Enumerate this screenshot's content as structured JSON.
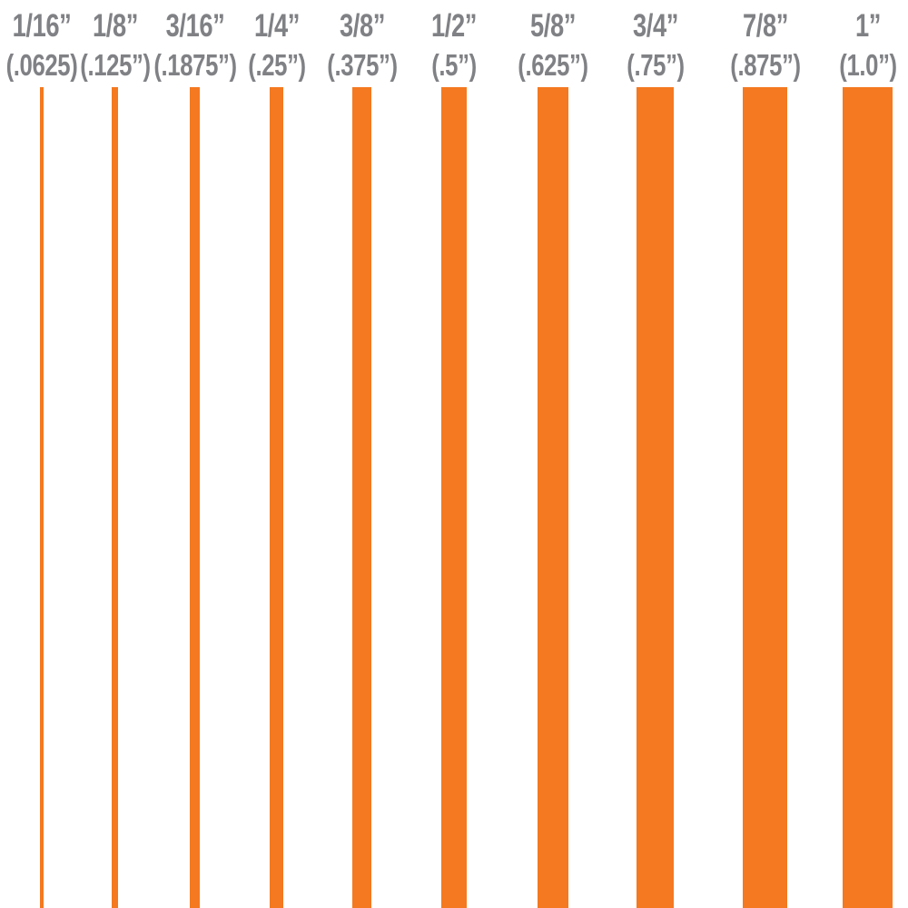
{
  "bar_color": "#F47920",
  "label_color": "#808185",
  "widths": [
    {
      "fraction": "1/16”",
      "decimal": "(.0625)",
      "inches": 0.0625
    },
    {
      "fraction": "1/8”",
      "decimal": "(.125”)",
      "inches": 0.125
    },
    {
      "fraction": "3/16”",
      "decimal": "(.1875”)",
      "inches": 0.1875
    },
    {
      "fraction": "1/4”",
      "decimal": "(.25”)",
      "inches": 0.25
    },
    {
      "fraction": "3/8”",
      "decimal": "(.375”)",
      "inches": 0.375
    },
    {
      "fraction": "1/2”",
      "decimal": "(.5”)",
      "inches": 0.5
    },
    {
      "fraction": "5/8”",
      "decimal": "(.625”)",
      "inches": 0.625
    },
    {
      "fraction": "3/4”",
      "decimal": "(.75”)",
      "inches": 0.75
    },
    {
      "fraction": "7/8”",
      "decimal": "(.875”)",
      "inches": 0.875
    },
    {
      "fraction": "1”",
      "decimal": "(1.0”)",
      "inches": 1.0
    }
  ]
}
